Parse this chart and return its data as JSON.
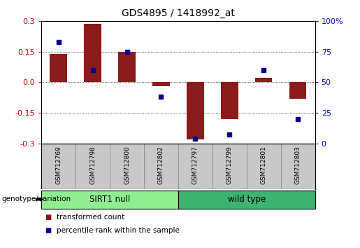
{
  "title": "GDS4895 / 1418992_at",
  "samples": [
    "GSM712769",
    "GSM712798",
    "GSM712800",
    "GSM712802",
    "GSM712797",
    "GSM712799",
    "GSM712801",
    "GSM712803"
  ],
  "red_bars": [
    0.14,
    0.285,
    0.15,
    -0.02,
    -0.28,
    -0.18,
    0.022,
    -0.08
  ],
  "blue_dots": [
    83,
    60,
    75,
    38,
    4,
    7,
    60,
    20
  ],
  "groups": [
    {
      "label": "SIRT1 null",
      "start": 0,
      "end": 4,
      "color": "#90EE90"
    },
    {
      "label": "wild type",
      "start": 4,
      "end": 8,
      "color": "#3CB371"
    }
  ],
  "ylim": [
    -0.3,
    0.3
  ],
  "yticks_left": [
    -0.3,
    -0.15,
    0.0,
    0.15,
    0.3
  ],
  "yticks_right": [
    0,
    25,
    50,
    75,
    100
  ],
  "bar_color": "#8B1A1A",
  "dot_color": "#00008B",
  "bg_color": "#FFFFFF",
  "plot_bg": "#FFFFFF",
  "label_transformed": "transformed count",
  "label_percentile": "percentile rank within the sample",
  "genotype_label": "genotype/variation"
}
